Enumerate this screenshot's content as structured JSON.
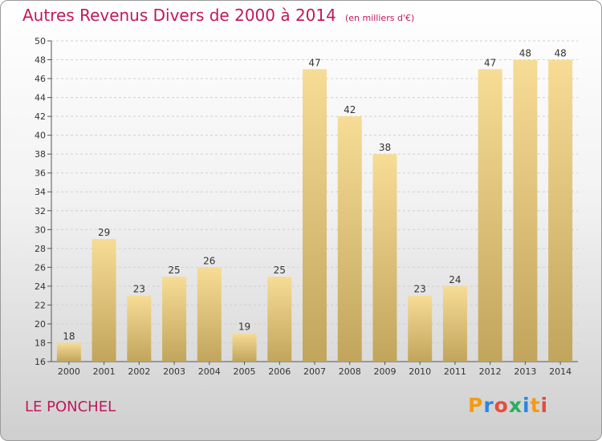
{
  "title": "Autres Revenus Divers de 2000 à 2014",
  "unit_label": "(en milliers d'€)",
  "commune": "LE PONCHEL",
  "logo": {
    "text": "Proxiti",
    "letters": [
      "P",
      "r",
      "o",
      "x",
      "i",
      "t",
      "i"
    ],
    "colors": [
      "#f39c12",
      "#2e86de",
      "#e74c3c",
      "#27ae60",
      "#2e86de",
      "#f39c12",
      "#e74c3c"
    ]
  },
  "colors": {
    "title": "#c2185b",
    "bar_light": "#f7dc96",
    "bar_dark": "#c2a55c",
    "grid": "#d0d0d0"
  },
  "chart_data": {
    "type": "bar",
    "title": "Autres Revenus Divers de 2000 à 2014",
    "subtitle": "(en milliers d'€)",
    "categories": [
      "2000",
      "2001",
      "2002",
      "2003",
      "2004",
      "2005",
      "2006",
      "2007",
      "2008",
      "2009",
      "2010",
      "2011",
      "2012",
      "2013",
      "2014"
    ],
    "values": [
      18,
      29,
      23,
      25,
      26,
      19,
      25,
      47,
      42,
      38,
      23,
      24,
      47,
      48,
      48
    ],
    "ylim": [
      16,
      50
    ],
    "yticks": [
      16,
      18,
      20,
      22,
      24,
      26,
      28,
      30,
      32,
      34,
      36,
      38,
      40,
      42,
      44,
      46,
      48,
      50
    ],
    "grid": "horizontal-dashed",
    "legend": "none"
  }
}
